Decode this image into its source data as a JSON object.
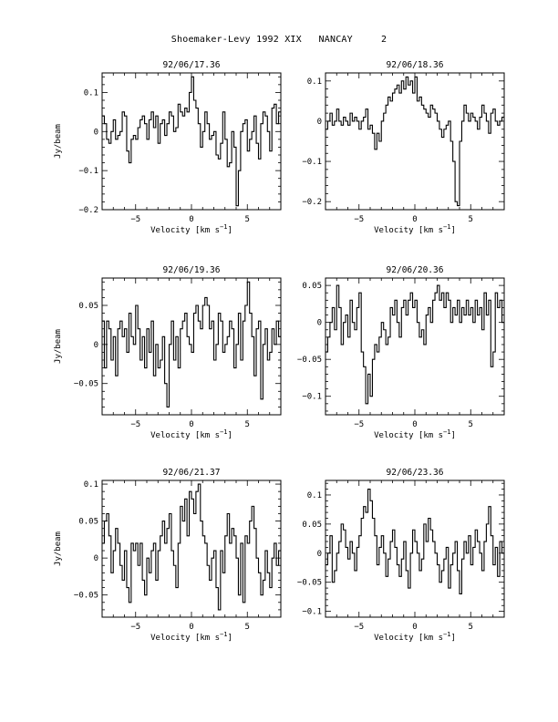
{
  "page": {
    "title": "Shoemaker-Levy 1992 XIX   NANCAY     2"
  },
  "chart_data": [
    {
      "type": "line",
      "title": "92/06/17.36",
      "xlabel": "Velocity [km s^-1]",
      "ylabel": "Jy/beam",
      "xlim": [
        -8,
        8
      ],
      "ylim": [
        -0.2,
        0.15
      ],
      "xticks": [
        -5,
        0,
        5
      ],
      "yticks": [
        -0.2,
        -0.1,
        0,
        0.1
      ],
      "ytick_labels": [
        "-0.2",
        "-0.1",
        "0",
        "0.1"
      ],
      "x": [
        -8.0,
        -7.8,
        -7.6,
        -7.4,
        -7.2,
        -7.0,
        -6.8,
        -6.6,
        -6.4,
        -6.2,
        -6.0,
        -5.8,
        -5.6,
        -5.4,
        -5.2,
        -5.0,
        -4.8,
        -4.6,
        -4.4,
        -4.2,
        -4.0,
        -3.8,
        -3.6,
        -3.4,
        -3.2,
        -3.0,
        -2.8,
        -2.6,
        -2.4,
        -2.2,
        -2.0,
        -1.8,
        -1.6,
        -1.4,
        -1.2,
        -1.0,
        -0.8,
        -0.6,
        -0.4,
        -0.2,
        0.0,
        0.2,
        0.4,
        0.6,
        0.8,
        1.0,
        1.2,
        1.4,
        1.6,
        1.8,
        2.0,
        2.2,
        2.4,
        2.6,
        2.8,
        3.0,
        3.2,
        3.4,
        3.6,
        3.8,
        4.0,
        4.2,
        4.4,
        4.6,
        4.8,
        5.0,
        5.2,
        5.4,
        5.6,
        5.8,
        6.0,
        6.2,
        6.4,
        6.6,
        6.8,
        7.0,
        7.2,
        7.4,
        7.6,
        7.8
      ],
      "values": [
        0.04,
        0.02,
        -0.02,
        -0.03,
        0.0,
        0.03,
        -0.02,
        -0.01,
        0.0,
        0.05,
        0.04,
        -0.05,
        -0.08,
        -0.02,
        -0.01,
        -0.02,
        0.01,
        0.03,
        0.04,
        0.02,
        -0.02,
        0.03,
        0.05,
        0.01,
        0.04,
        -0.03,
        0.02,
        0.03,
        -0.01,
        0.02,
        0.05,
        0.04,
        0.0,
        0.01,
        0.07,
        0.05,
        0.04,
        0.06,
        0.05,
        0.1,
        0.14,
        0.08,
        0.06,
        0.02,
        -0.04,
        0.0,
        0.05,
        0.02,
        -0.02,
        -0.01,
        0.0,
        -0.06,
        -0.07,
        -0.03,
        0.05,
        -0.02,
        -0.09,
        -0.08,
        0.0,
        -0.04,
        -0.19,
        -0.1,
        0.0,
        0.02,
        0.03,
        -0.05,
        -0.02,
        0.0,
        0.04,
        -0.03,
        -0.07,
        0.02,
        0.05,
        0.04,
        0.0,
        -0.05,
        0.06,
        0.07,
        0.02,
        0.05
      ]
    },
    {
      "type": "line",
      "title": "92/06/18.36",
      "xlabel": "Velocity [km s^-1]",
      "ylabel": "",
      "xlim": [
        -8,
        8
      ],
      "ylim": [
        -0.22,
        0.12
      ],
      "xticks": [
        -5,
        0,
        5
      ],
      "yticks": [
        -0.2,
        -0.1,
        0,
        0.1
      ],
      "ytick_labels": [
        "-0.2",
        "-0.1",
        "0",
        "0.1"
      ],
      "x": [
        -8.0,
        -7.8,
        -7.6,
        -7.4,
        -7.2,
        -7.0,
        -6.8,
        -6.6,
        -6.4,
        -6.2,
        -6.0,
        -5.8,
        -5.6,
        -5.4,
        -5.2,
        -5.0,
        -4.8,
        -4.6,
        -4.4,
        -4.2,
        -4.0,
        -3.8,
        -3.6,
        -3.4,
        -3.2,
        -3.0,
        -2.8,
        -2.6,
        -2.4,
        -2.2,
        -2.0,
        -1.8,
        -1.6,
        -1.4,
        -1.2,
        -1.0,
        -0.8,
        -0.6,
        -0.4,
        -0.2,
        0.0,
        0.2,
        0.4,
        0.6,
        0.8,
        1.0,
        1.2,
        1.4,
        1.6,
        1.8,
        2.0,
        2.2,
        2.4,
        2.6,
        2.8,
        3.0,
        3.2,
        3.4,
        3.6,
        3.8,
        4.0,
        4.2,
        4.4,
        4.6,
        4.8,
        5.0,
        5.2,
        5.4,
        5.6,
        5.8,
        6.0,
        6.2,
        6.4,
        6.6,
        6.8,
        7.0,
        7.2,
        7.4,
        7.6,
        7.8
      ],
      "values": [
        -0.02,
        0.0,
        0.02,
        -0.01,
        0.0,
        0.03,
        0.0,
        -0.01,
        0.01,
        0.0,
        -0.01,
        0.02,
        0.0,
        0.01,
        0.0,
        -0.02,
        0.0,
        0.01,
        0.03,
        -0.02,
        -0.01,
        -0.03,
        -0.07,
        -0.03,
        -0.05,
        0.0,
        0.02,
        0.04,
        0.06,
        0.05,
        0.07,
        0.08,
        0.09,
        0.07,
        0.1,
        0.08,
        0.11,
        0.09,
        0.1,
        0.07,
        0.11,
        0.05,
        0.06,
        0.04,
        0.03,
        0.02,
        0.01,
        0.04,
        0.03,
        0.02,
        0.0,
        -0.02,
        -0.04,
        -0.02,
        -0.01,
        0.0,
        -0.05,
        -0.1,
        -0.2,
        -0.21,
        -0.05,
        0.0,
        0.04,
        0.02,
        0.0,
        0.02,
        0.01,
        0.0,
        -0.02,
        0.01,
        0.04,
        0.02,
        0.0,
        -0.03,
        0.02,
        0.03,
        0.0,
        -0.01,
        0.0,
        0.01
      ]
    },
    {
      "type": "line",
      "title": "92/06/19.36",
      "xlabel": "Velocity [km s^-1]",
      "ylabel": "Jy/beam",
      "xlim": [
        -8,
        8
      ],
      "ylim": [
        -0.09,
        0.085
      ],
      "xticks": [
        -5,
        0,
        5
      ],
      "yticks": [
        -0.05,
        0,
        0.05
      ],
      "ytick_labels": [
        "-0.05",
        "0",
        "0.05"
      ],
      "x": [
        -8.0,
        -7.8,
        -7.6,
        -7.4,
        -7.2,
        -7.0,
        -6.8,
        -6.6,
        -6.4,
        -6.2,
        -6.0,
        -5.8,
        -5.6,
        -5.4,
        -5.2,
        -5.0,
        -4.8,
        -4.6,
        -4.4,
        -4.2,
        -4.0,
        -3.8,
        -3.6,
        -3.4,
        -3.2,
        -3.0,
        -2.8,
        -2.6,
        -2.4,
        -2.2,
        -2.0,
        -1.8,
        -1.6,
        -1.4,
        -1.2,
        -1.0,
        -0.8,
        -0.6,
        -0.4,
        -0.2,
        0.0,
        0.2,
        0.4,
        0.6,
        0.8,
        1.0,
        1.2,
        1.4,
        1.6,
        1.8,
        2.0,
        2.2,
        2.4,
        2.6,
        2.8,
        3.0,
        3.2,
        3.4,
        3.6,
        3.8,
        4.0,
        4.2,
        4.4,
        4.6,
        4.8,
        5.0,
        5.2,
        5.4,
        5.6,
        5.8,
        6.0,
        6.2,
        6.4,
        6.6,
        6.8,
        7.0,
        7.2,
        7.4,
        7.6,
        7.8
      ],
      "values": [
        0.03,
        -0.03,
        0.03,
        0.02,
        -0.02,
        0.01,
        -0.04,
        0.02,
        0.03,
        0.01,
        0.02,
        -0.01,
        0.04,
        0.01,
        0.0,
        0.05,
        0.02,
        -0.02,
        0.01,
        -0.03,
        0.02,
        -0.01,
        0.03,
        -0.04,
        0.0,
        -0.03,
        -0.02,
        0.01,
        -0.05,
        -0.08,
        0.0,
        0.03,
        -0.02,
        0.01,
        -0.03,
        0.02,
        0.03,
        0.04,
        0.01,
        0.0,
        -0.01,
        0.04,
        0.05,
        0.03,
        0.02,
        0.05,
        0.06,
        0.05,
        0.02,
        0.03,
        -0.02,
        0.0,
        0.04,
        0.03,
        -0.01,
        0.0,
        0.01,
        0.03,
        0.02,
        -0.03,
        0.0,
        0.04,
        -0.02,
        0.03,
        0.05,
        0.08,
        0.04,
        0.01,
        -0.04,
        0.02,
        0.03,
        -0.07,
        0.0,
        0.02,
        -0.02,
        -0.01,
        0.02,
        0.0,
        0.03,
        0.01
      ]
    },
    {
      "type": "line",
      "title": "92/06/20.36",
      "xlabel": "Velocity [km s^-1]",
      "ylabel": "",
      "xlim": [
        -8,
        8
      ],
      "ylim": [
        -0.125,
        0.06
      ],
      "xticks": [
        -5,
        0,
        5
      ],
      "yticks": [
        -0.1,
        -0.05,
        0,
        0.05
      ],
      "ytick_labels": [
        "-0.1",
        "-0.05",
        "0",
        "0.05"
      ],
      "x": [
        -8.0,
        -7.8,
        -7.6,
        -7.4,
        -7.2,
        -7.0,
        -6.8,
        -6.6,
        -6.4,
        -6.2,
        -6.0,
        -5.8,
        -5.6,
        -5.4,
        -5.2,
        -5.0,
        -4.8,
        -4.6,
        -4.4,
        -4.2,
        -4.0,
        -3.8,
        -3.6,
        -3.4,
        -3.2,
        -3.0,
        -2.8,
        -2.6,
        -2.4,
        -2.2,
        -2.0,
        -1.8,
        -1.6,
        -1.4,
        -1.2,
        -1.0,
        -0.8,
        -0.6,
        -0.4,
        -0.2,
        0.0,
        0.2,
        0.4,
        0.6,
        0.8,
        1.0,
        1.2,
        1.4,
        1.6,
        1.8,
        2.0,
        2.2,
        2.4,
        2.6,
        2.8,
        3.0,
        3.2,
        3.4,
        3.6,
        3.8,
        4.0,
        4.2,
        4.4,
        4.6,
        4.8,
        5.0,
        5.2,
        5.4,
        5.6,
        5.8,
        6.0,
        6.2,
        6.4,
        6.6,
        6.8,
        7.0,
        7.2,
        7.4,
        7.6,
        7.8
      ],
      "values": [
        -0.04,
        -0.02,
        0.0,
        0.02,
        -0.01,
        0.05,
        0.02,
        -0.03,
        0.0,
        0.01,
        -0.02,
        0.03,
        0.0,
        -0.01,
        0.02,
        0.04,
        -0.04,
        -0.06,
        -0.11,
        -0.07,
        -0.1,
        -0.05,
        -0.03,
        -0.04,
        -0.02,
        0.0,
        -0.01,
        -0.03,
        -0.02,
        0.02,
        0.01,
        0.03,
        0.0,
        -0.02,
        0.02,
        0.03,
        0.01,
        0.03,
        0.04,
        0.02,
        0.03,
        0.0,
        -0.02,
        -0.01,
        -0.03,
        0.01,
        0.02,
        0.0,
        0.03,
        0.04,
        0.05,
        0.03,
        0.04,
        0.02,
        0.04,
        0.03,
        0.0,
        0.02,
        0.01,
        0.03,
        0.0,
        0.02,
        0.01,
        0.03,
        0.01,
        0.02,
        0.0,
        0.03,
        0.01,
        0.02,
        -0.01,
        0.04,
        0.01,
        0.03,
        -0.06,
        -0.04,
        0.04,
        0.02,
        0.03,
        0.0
      ]
    },
    {
      "type": "line",
      "title": "92/06/21.37",
      "xlabel": "Velocity [km s^-1]",
      "ylabel": "Jy/beam",
      "xlim": [
        -8,
        8
      ],
      "ylim": [
        -0.08,
        0.105
      ],
      "xticks": [
        -5,
        0,
        5
      ],
      "yticks": [
        -0.05,
        0,
        0.05,
        0.1
      ],
      "ytick_labels": [
        "-0.05",
        "0",
        "0.05",
        "0.1"
      ],
      "x": [
        -8.0,
        -7.8,
        -7.6,
        -7.4,
        -7.2,
        -7.0,
        -6.8,
        -6.6,
        -6.4,
        -6.2,
        -6.0,
        -5.8,
        -5.6,
        -5.4,
        -5.2,
        -5.0,
        -4.8,
        -4.6,
        -4.4,
        -4.2,
        -4.0,
        -3.8,
        -3.6,
        -3.4,
        -3.2,
        -3.0,
        -2.8,
        -2.6,
        -2.4,
        -2.2,
        -2.0,
        -1.8,
        -1.6,
        -1.4,
        -1.2,
        -1.0,
        -0.8,
        -0.6,
        -0.4,
        -0.2,
        0.0,
        0.2,
        0.4,
        0.6,
        0.8,
        1.0,
        1.2,
        1.4,
        1.6,
        1.8,
        2.0,
        2.2,
        2.4,
        2.6,
        2.8,
        3.0,
        3.2,
        3.4,
        3.6,
        3.8,
        4.0,
        4.2,
        4.4,
        4.6,
        4.8,
        5.0,
        5.2,
        5.4,
        5.6,
        5.8,
        6.0,
        6.2,
        6.4,
        6.6,
        6.8,
        7.0,
        7.2,
        7.4,
        7.6,
        7.8
      ],
      "values": [
        0.02,
        0.05,
        0.06,
        0.03,
        -0.02,
        0.01,
        0.04,
        0.02,
        -0.01,
        -0.03,
        0.01,
        -0.04,
        -0.06,
        0.02,
        0.01,
        0.02,
        -0.01,
        0.02,
        -0.03,
        -0.05,
        0.0,
        -0.02,
        0.01,
        0.02,
        -0.03,
        0.01,
        0.03,
        0.05,
        0.02,
        0.04,
        0.06,
        0.01,
        -0.01,
        -0.04,
        0.02,
        0.07,
        0.05,
        0.08,
        0.03,
        0.09,
        0.08,
        0.06,
        0.09,
        0.1,
        0.05,
        0.03,
        0.02,
        -0.01,
        -0.03,
        0.0,
        0.01,
        -0.04,
        -0.07,
        0.01,
        -0.02,
        0.03,
        0.06,
        0.02,
        0.04,
        0.03,
        0.0,
        -0.05,
        0.02,
        -0.06,
        0.03,
        0.02,
        0.05,
        0.07,
        0.04,
        0.0,
        -0.02,
        -0.05,
        -0.03,
        0.01,
        -0.02,
        -0.04,
        0.0,
        0.02,
        -0.01,
        0.01
      ]
    },
    {
      "type": "line",
      "title": "92/06/23.36",
      "xlabel": "Velocity [km s^-1]",
      "ylabel": "",
      "xlim": [
        -8,
        8
      ],
      "ylim": [
        -0.11,
        0.125
      ],
      "xticks": [
        -5,
        0,
        5
      ],
      "yticks": [
        -0.1,
        -0.05,
        0,
        0.05,
        0.1
      ],
      "ytick_labels": [
        "-0.1",
        "-0.05",
        "0",
        "0.05",
        "0.1"
      ],
      "x": [
        -8.0,
        -7.8,
        -7.6,
        -7.4,
        -7.2,
        -7.0,
        -6.8,
        -6.6,
        -6.4,
        -6.2,
        -6.0,
        -5.8,
        -5.6,
        -5.4,
        -5.2,
        -5.0,
        -4.8,
        -4.6,
        -4.4,
        -4.2,
        -4.0,
        -3.8,
        -3.6,
        -3.4,
        -3.2,
        -3.0,
        -2.8,
        -2.6,
        -2.4,
        -2.2,
        -2.0,
        -1.8,
        -1.6,
        -1.4,
        -1.2,
        -1.0,
        -0.8,
        -0.6,
        -0.4,
        -0.2,
        0.0,
        0.2,
        0.4,
        0.6,
        0.8,
        1.0,
        1.2,
        1.4,
        1.6,
        1.8,
        2.0,
        2.2,
        2.4,
        2.6,
        2.8,
        3.0,
        3.2,
        3.4,
        3.6,
        3.8,
        4.0,
        4.2,
        4.4,
        4.6,
        4.8,
        5.0,
        5.2,
        5.4,
        5.6,
        5.8,
        6.0,
        6.2,
        6.4,
        6.6,
        6.8,
        7.0,
        7.2,
        7.4,
        7.6,
        7.8
      ],
      "values": [
        -0.02,
        0.0,
        0.03,
        -0.05,
        -0.03,
        0.0,
        0.02,
        0.05,
        0.04,
        0.01,
        -0.01,
        0.02,
        0.0,
        -0.03,
        0.01,
        0.03,
        0.06,
        0.08,
        0.07,
        0.11,
        0.09,
        0.06,
        0.03,
        -0.02,
        0.01,
        0.03,
        0.0,
        -0.04,
        -0.01,
        0.02,
        0.04,
        0.01,
        -0.02,
        -0.04,
        -0.01,
        0.02,
        -0.03,
        -0.06,
        0.0,
        0.04,
        0.02,
        0.0,
        -0.03,
        -0.01,
        0.05,
        0.02,
        0.06,
        0.04,
        0.02,
        0.0,
        -0.02,
        -0.05,
        -0.03,
        -0.01,
        0.01,
        -0.06,
        -0.02,
        0.0,
        0.02,
        -0.03,
        -0.07,
        -0.01,
        0.02,
        0.0,
        0.03,
        -0.02,
        0.01,
        0.04,
        0.02,
        0.0,
        -0.03,
        0.02,
        0.05,
        0.08,
        0.03,
        -0.02,
        0.01,
        -0.04,
        0.02,
        0.0
      ]
    }
  ]
}
